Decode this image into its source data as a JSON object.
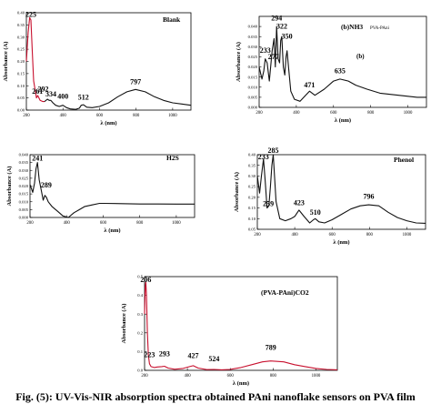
{
  "figure": {
    "caption": "Fig. (5): UV-Vis-NIR absorption spectra obtained PAni nanoflake sensors on PVA film",
    "colors": {
      "red": "#c8102e",
      "black": "#111111",
      "axis": "#000000"
    }
  },
  "chart_data": [
    {
      "type": "line",
      "panel_label": "Blank",
      "xlabel": "λ (nm)",
      "ylabel": "Absorbance (A)",
      "xlim": [
        200,
        1100
      ],
      "ylim": [
        0,
        0.4
      ],
      "xticks": [
        200,
        400,
        600,
        800,
        1000
      ],
      "yticks": [
        0.0,
        0.05,
        0.1,
        0.15,
        0.2,
        0.25,
        0.3,
        0.35,
        0.4
      ],
      "grid": false,
      "series": [
        {
          "color": "#c8102e",
          "x": [
            200,
            210,
            218,
            225,
            232,
            240,
            255,
            262,
            275,
            290,
            300
          ],
          "y": [
            0.2,
            0.32,
            0.38,
            0.37,
            0.25,
            0.12,
            0.05,
            0.06,
            0.04,
            0.035,
            0.035
          ]
        },
        {
          "color": "#111111",
          "x": [
            300,
            315,
            325,
            334,
            345,
            360,
            380,
            400,
            420,
            440,
            470,
            490,
            500,
            512,
            530,
            560,
            600,
            650,
            700,
            750,
            797,
            850,
            900,
            950,
            1000,
            1050,
            1100
          ],
          "y": [
            0.035,
            0.045,
            0.04,
            0.04,
            0.03,
            0.02,
            0.015,
            0.02,
            0.01,
            0.005,
            0.003,
            0.008,
            0.02,
            0.022,
            0.012,
            0.01,
            0.015,
            0.03,
            0.055,
            0.075,
            0.085,
            0.075,
            0.055,
            0.04,
            0.03,
            0.025,
            0.02
          ]
        }
      ],
      "annotations": [
        {
          "text": "225",
          "x": 225,
          "y": 0.375,
          "color": "#c8102e"
        },
        {
          "text": "261",
          "x": 261,
          "y": 0.06
        },
        {
          "text": "292",
          "x": 292,
          "y": 0.07
        },
        {
          "text": "334",
          "x": 334,
          "y": 0.048
        },
        {
          "text": "400",
          "x": 400,
          "y": 0.04
        },
        {
          "text": "512",
          "x": 512,
          "y": 0.035
        },
        {
          "text": "797",
          "x": 797,
          "y": 0.1
        }
      ]
    },
    {
      "type": "line",
      "panel_label": "(b)NH3",
      "panel_sublabel": "PVA-PAni",
      "panel_tag": "(b)",
      "xlabel": "λ (nm)",
      "ylabel": "Absorbance (A)",
      "xlim": [
        200,
        1100
      ],
      "ylim": [
        0,
        0.045
      ],
      "xticks": [
        200,
        400,
        600,
        800,
        1000
      ],
      "yticks": [
        0,
        0.005,
        0.01,
        0.015,
        0.02,
        0.025,
        0.03,
        0.035,
        0.04
      ],
      "grid": false,
      "series": [
        {
          "color": "#111111",
          "x": [
            200,
            215,
            225,
            233,
            243,
            255,
            270,
            280,
            287,
            294,
            302,
            310,
            316,
            322,
            330,
            338,
            345,
            350,
            358,
            370,
            390,
            420,
            450,
            471,
            500,
            550,
            600,
            635,
            680,
            720,
            780,
            850,
            950,
            1050,
            1100
          ],
          "y": [
            0.02,
            0.014,
            0.018,
            0.024,
            0.022,
            0.013,
            0.028,
            0.034,
            0.02,
            0.04,
            0.024,
            0.022,
            0.033,
            0.035,
            0.02,
            0.016,
            0.025,
            0.028,
            0.02,
            0.008,
            0.004,
            0.003,
            0.006,
            0.008,
            0.006,
            0.009,
            0.013,
            0.014,
            0.013,
            0.011,
            0.009,
            0.007,
            0.006,
            0.005,
            0.005
          ]
        }
      ],
      "annotations": [
        {
          "text": "294",
          "x": 294,
          "y": 0.042
        },
        {
          "text": "322",
          "x": 322,
          "y": 0.038
        },
        {
          "text": "350",
          "x": 350,
          "y": 0.033
        },
        {
          "text": "233",
          "x": 233,
          "y": 0.026
        },
        {
          "text": "277",
          "x": 277,
          "y": 0.023
        },
        {
          "text": "471",
          "x": 471,
          "y": 0.009
        },
        {
          "text": "635",
          "x": 635,
          "y": 0.016
        }
      ]
    },
    {
      "type": "line",
      "panel_label": "H2S",
      "xlabel": "λ (nm)",
      "ylabel": "Absorbance (A)",
      "xlim": [
        200,
        1100
      ],
      "ylim": [
        0,
        0.04
      ],
      "xticks": [
        200,
        400,
        600,
        800,
        1000
      ],
      "yticks": [
        0,
        0.005,
        0.01,
        0.015,
        0.02,
        0.025,
        0.03,
        0.035,
        0.04
      ],
      "grid": false,
      "series": [
        {
          "color": "#111111",
          "x": [
            200,
            215,
            225,
            233,
            241,
            250,
            262,
            272,
            281,
            289,
            300,
            320,
            350,
            380,
            410,
            440,
            470,
            500,
            540,
            580,
            600,
            700,
            800,
            900,
            1000,
            1100
          ],
          "y": [
            0.021,
            0.016,
            0.022,
            0.031,
            0.035,
            0.024,
            0.017,
            0.011,
            0.014,
            0.013,
            0.01,
            0.007,
            0.004,
            0.001,
            0.0,
            0.003,
            0.005,
            0.007,
            0.008,
            0.009,
            0.009,
            0.0088,
            0.0086,
            0.0086,
            0.0085,
            0.0085
          ]
        }
      ],
      "annotations": [
        {
          "text": "241",
          "x": 241,
          "y": 0.035
        },
        {
          "text": "289",
          "x": 289,
          "y": 0.018
        }
      ]
    },
    {
      "type": "line",
      "panel_label": "Phenol",
      "xlabel": "λ (nm)",
      "ylabel": "Absorbance (A)",
      "xlim": [
        200,
        1100
      ],
      "ylim": [
        0.05,
        0.4
      ],
      "xticks": [
        200,
        400,
        600,
        800,
        1000
      ],
      "yticks": [
        0.05,
        0.1,
        0.15,
        0.2,
        0.25,
        0.3,
        0.35,
        0.4
      ],
      "grid": false,
      "series": [
        {
          "color": "#111111",
          "x": [
            200,
            212,
            222,
            233,
            242,
            252,
            262,
            270,
            278,
            285,
            292,
            300,
            320,
            350,
            380,
            400,
            423,
            450,
            480,
            500,
            510,
            530,
            560,
            600,
            650,
            700,
            750,
            796,
            850,
            900,
            950,
            1000,
            1050,
            1100
          ],
          "y": [
            0.3,
            0.22,
            0.3,
            0.38,
            0.28,
            0.15,
            0.16,
            0.25,
            0.35,
            0.4,
            0.3,
            0.18,
            0.1,
            0.09,
            0.1,
            0.11,
            0.14,
            0.11,
            0.08,
            0.095,
            0.1,
            0.085,
            0.08,
            0.095,
            0.12,
            0.145,
            0.16,
            0.165,
            0.16,
            0.13,
            0.105,
            0.09,
            0.08,
            0.078
          ]
        }
      ],
      "annotations": [
        {
          "text": "233",
          "x": 233,
          "y": 0.37
        },
        {
          "text": "285",
          "x": 285,
          "y": 0.4
        },
        {
          "text": "259",
          "x": 259,
          "y": 0.15
        },
        {
          "text": "423",
          "x": 423,
          "y": 0.155
        },
        {
          "text": "510",
          "x": 510,
          "y": 0.11
        },
        {
          "text": "796",
          "x": 796,
          "y": 0.185
        }
      ]
    },
    {
      "type": "line",
      "panel_label": "(PVA-PAni)CO2",
      "xlabel": "λ (nm)",
      "ylabel": "Absorbance (A)",
      "xlim": [
        200,
        1100
      ],
      "ylim": [
        0,
        0.5
      ],
      "xticks": [
        200,
        400,
        600,
        800,
        1000
      ],
      "yticks": [
        0.0,
        0.1,
        0.2,
        0.3,
        0.4,
        0.5
      ],
      "grid": false,
      "series": [
        {
          "color": "#c8102e",
          "x": [
            200,
            203,
            206,
            209,
            213,
            218,
            223,
            230,
            245,
            260,
            280,
            293,
            310,
            340,
            380,
            410,
            427,
            450,
            490,
            524,
            560,
            600,
            650,
            700,
            750,
            789,
            850,
            900,
            950,
            1000,
            1050,
            1100
          ],
          "y": [
            0.3,
            0.44,
            0.47,
            0.4,
            0.2,
            0.08,
            0.035,
            0.02,
            0.015,
            0.018,
            0.02,
            0.022,
            0.012,
            0.006,
            0.01,
            0.02,
            0.025,
            0.012,
            0.004,
            0.005,
            0.003,
            0.005,
            0.015,
            0.03,
            0.045,
            0.05,
            0.045,
            0.03,
            0.02,
            0.01,
            0.005,
            0.003
          ]
        }
      ],
      "annotations": [
        {
          "text": "206",
          "x": 206,
          "y": 0.46,
          "color": "#000000"
        },
        {
          "text": "223",
          "x": 223,
          "y": 0.06
        },
        {
          "text": "293",
          "x": 293,
          "y": 0.065
        },
        {
          "text": "427",
          "x": 427,
          "y": 0.055
        },
        {
          "text": "524",
          "x": 524,
          "y": 0.04
        },
        {
          "text": "789",
          "x": 789,
          "y": 0.1
        }
      ]
    }
  ]
}
